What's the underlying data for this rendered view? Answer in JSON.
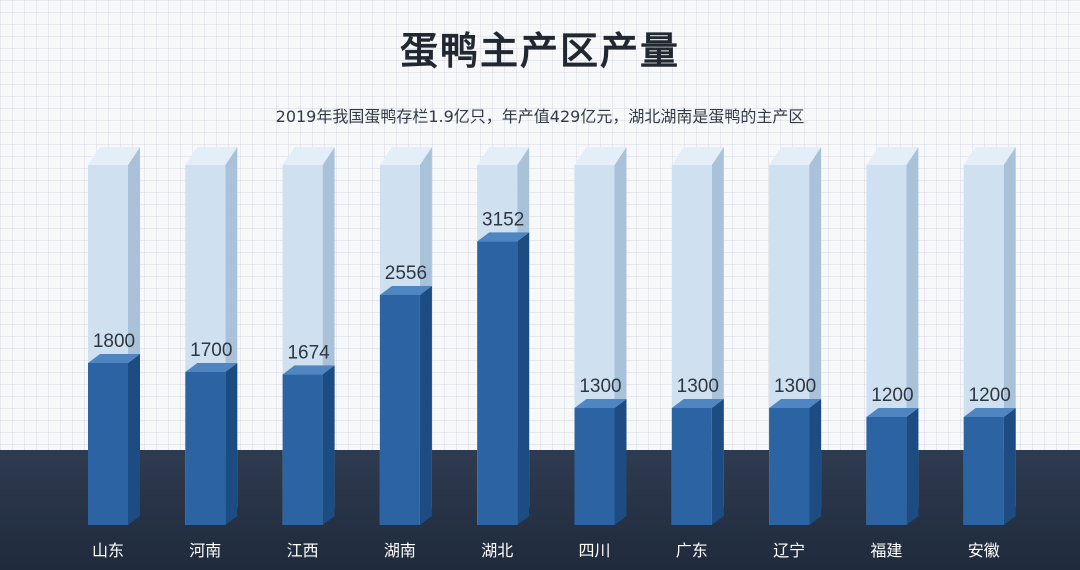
{
  "title": "蛋鸭主产区产量",
  "subtitle": "2019年我国蛋鸭存栏1.9亿只，年产值429亿元，湖北湖南是蛋鸭的主产区",
  "colors": {
    "bar_front": "#2c64a3",
    "bar_side": "#1d4c82",
    "bar_top": "#4f86c2",
    "track_front": "#cfe0f0",
    "track_side": "#a9c2da",
    "track_top": "#e3eef8",
    "value_label": "#2f3640",
    "category_label": "#ffffff",
    "footer": "#27324a"
  },
  "chart_data": {
    "type": "bar",
    "title": "蛋鸭主产区产量",
    "subtitle": "2019年我国蛋鸭存栏1.9亿只，年产值429亿元，湖北湖南是蛋鸭的主产区",
    "categories": [
      "山东",
      "河南",
      "江西",
      "湖南",
      "湖北",
      "四川",
      "广东",
      "辽宁",
      "福建",
      "安徽"
    ],
    "values": [
      1800,
      1700,
      1674,
      2556,
      3152,
      1300,
      1300,
      1300,
      1200,
      1200
    ],
    "ylim": [
      0,
      4000
    ],
    "grid": false,
    "legend": "none"
  }
}
